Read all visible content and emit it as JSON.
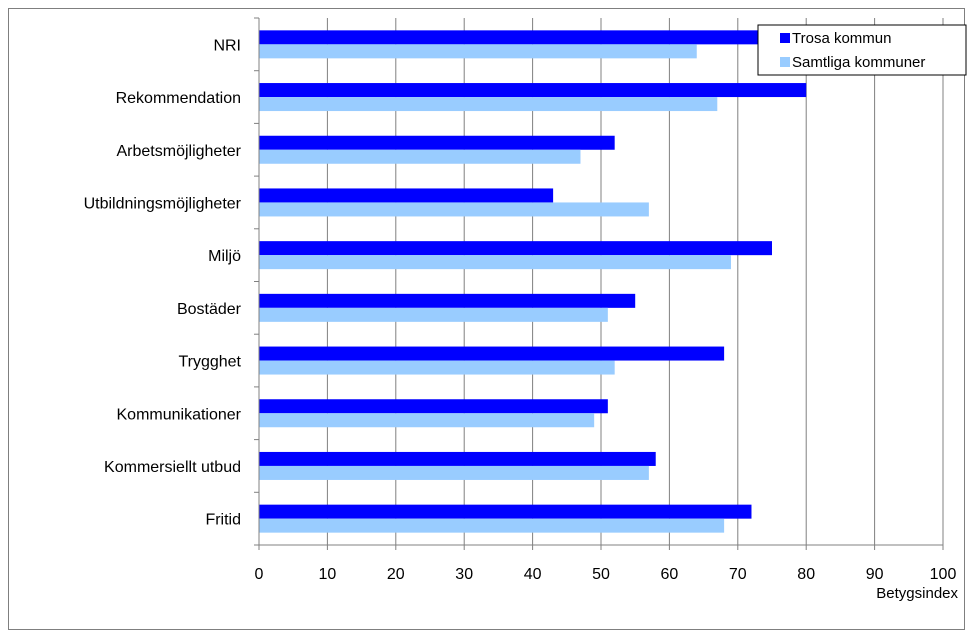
{
  "chart_data": {
    "type": "bar",
    "orientation": "horizontal",
    "categories": [
      "NRI",
      "Rekommendation",
      "Arbetsmöjligheter",
      "Utbildningsmöjligheter",
      "Miljö",
      "Bostäder",
      "Trygghet",
      "Kommunikationer",
      "Kommersiellt utbud",
      "Fritid"
    ],
    "series": [
      {
        "name": "Trosa kommun",
        "color": "#0000ff",
        "values": [
          73,
          80,
          52,
          43,
          75,
          55,
          68,
          51,
          58,
          72
        ]
      },
      {
        "name": "Samtliga kommuner",
        "color": "#99ccff",
        "values": [
          64,
          67,
          47,
          57,
          69,
          51,
          52,
          49,
          57,
          68
        ]
      }
    ],
    "title": "",
    "xlabel": "Betygsindex",
    "ylabel": "",
    "xlim": [
      0,
      100
    ],
    "xticks": [
      "0",
      "10",
      "20",
      "30",
      "40",
      "50",
      "60",
      "70",
      "80",
      "90",
      "100"
    ],
    "grid": true,
    "legend_position": "top-right"
  }
}
